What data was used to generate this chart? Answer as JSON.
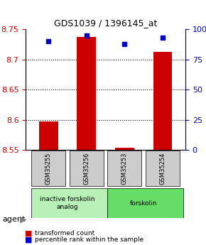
{
  "title": "GDS1039 / 1396145_at",
  "samples": [
    "GSM35255",
    "GSM35256",
    "GSM35253",
    "GSM35254"
  ],
  "red_values": [
    8.597,
    8.737,
    8.554,
    8.713
  ],
  "blue_values": [
    90,
    95,
    88,
    93
  ],
  "ylim_left": [
    8.55,
    8.75
  ],
  "ylim_right": [
    0,
    100
  ],
  "yticks_left": [
    8.55,
    8.6,
    8.65,
    8.7,
    8.75
  ],
  "yticks_right": [
    0,
    25,
    50,
    75,
    100
  ],
  "ytick_labels_right": [
    "0",
    "25",
    "50",
    "75",
    "100%"
  ],
  "grid_lines": [
    8.6,
    8.65,
    8.7
  ],
  "groups": [
    {
      "label": "inactive forskolin\nanalog",
      "color": "#b8f0b8",
      "start": 0,
      "end": 2
    },
    {
      "label": "forskolin",
      "color": "#66dd66",
      "start": 2,
      "end": 4
    }
  ],
  "agent_label": "agent",
  "legend_red": "transformed count",
  "legend_blue": "percentile rank within the sample",
  "bar_width": 0.5,
  "red_color": "#cc0000",
  "blue_color": "#0000cc",
  "left_axis_color": "#cc0000",
  "right_axis_color": "#0000cc",
  "sample_bg_color": "#cccccc",
  "base_value": 8.55
}
